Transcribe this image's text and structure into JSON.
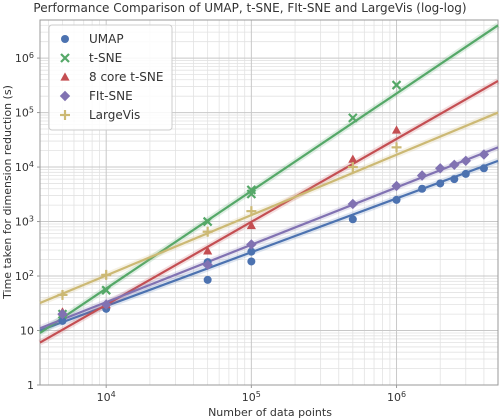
{
  "chart_data": {
    "type": "scatter",
    "title": "Performance Comparison of UMAP, t-SNE, FIt-SNE and LargeVis (log-log)",
    "xlabel": "Number of data points",
    "ylabel": "Time taken for dimension reduction (s)",
    "x_scale": "log",
    "y_scale": "log",
    "xlim": [
      3500,
      5000000
    ],
    "ylim": [
      1,
      5000000
    ],
    "x_ticks": [
      10000,
      100000,
      1000000
    ],
    "x_tick_labels": [
      "10^4",
      "10^5",
      "10^6"
    ],
    "y_ticks": [
      1,
      10,
      100,
      1000,
      10000,
      100000,
      1000000
    ],
    "y_tick_labels": [
      "1",
      "10",
      "10^2",
      "10^3",
      "10^4",
      "10^5",
      "10^6"
    ],
    "grid": true,
    "legend_position": "top-left",
    "series": [
      {
        "name": "UMAP",
        "color": "#4c72b0",
        "marker": "circle",
        "points": [
          {
            "x": 5000,
            "y": 15
          },
          {
            "x": 10000,
            "y": 25
          },
          {
            "x": 50000,
            "y": 85
          },
          {
            "x": 50000,
            "y": 180
          },
          {
            "x": 100000,
            "y": 185
          },
          {
            "x": 100000,
            "y": 280
          },
          {
            "x": 500000,
            "y": 1100
          },
          {
            "x": 1000000,
            "y": 2500
          },
          {
            "x": 1500000,
            "y": 4000
          },
          {
            "x": 2000000,
            "y": 5000
          },
          {
            "x": 2500000,
            "y": 6000
          },
          {
            "x": 3000000,
            "y": 7500
          },
          {
            "x": 4000000,
            "y": 9500
          }
        ],
        "fit": [
          {
            "x": 3500,
            "y": 10
          },
          {
            "x": 5000000,
            "y": 13000
          }
        ]
      },
      {
        "name": "t-SNE",
        "color": "#55a868",
        "marker": "x",
        "points": [
          {
            "x": 5000,
            "y": 20
          },
          {
            "x": 10000,
            "y": 55
          },
          {
            "x": 50000,
            "y": 1000
          },
          {
            "x": 100000,
            "y": 3200
          },
          {
            "x": 100000,
            "y": 3800
          },
          {
            "x": 500000,
            "y": 80000
          },
          {
            "x": 1000000,
            "y": 320000
          }
        ],
        "fit": [
          {
            "x": 3500,
            "y": 9
          },
          {
            "x": 5000000,
            "y": 4000000
          }
        ]
      },
      {
        "name": "8 core t-SNE",
        "color": "#c44e52",
        "marker": "triangle",
        "points": [
          {
            "x": 5000,
            "y": 22
          },
          {
            "x": 10000,
            "y": 30
          },
          {
            "x": 50000,
            "y": 290
          },
          {
            "x": 100000,
            "y": 850
          },
          {
            "x": 500000,
            "y": 14000
          },
          {
            "x": 1000000,
            "y": 48000
          }
        ],
        "fit": [
          {
            "x": 3500,
            "y": 6
          },
          {
            "x": 5000000,
            "y": 380000
          }
        ]
      },
      {
        "name": "FIt-SNE",
        "color": "#8172b2",
        "marker": "diamond",
        "points": [
          {
            "x": 5000,
            "y": 20
          },
          {
            "x": 10000,
            "y": 30
          },
          {
            "x": 50000,
            "y": 160
          },
          {
            "x": 100000,
            "y": 380
          },
          {
            "x": 500000,
            "y": 2100
          },
          {
            "x": 1000000,
            "y": 4500
          },
          {
            "x": 1500000,
            "y": 7000
          },
          {
            "x": 2000000,
            "y": 9500
          },
          {
            "x": 2500000,
            "y": 11000
          },
          {
            "x": 3000000,
            "y": 13000
          },
          {
            "x": 4000000,
            "y": 17000
          }
        ],
        "fit": [
          {
            "x": 3500,
            "y": 11
          },
          {
            "x": 5000000,
            "y": 23000
          }
        ]
      },
      {
        "name": "LargeVis",
        "color": "#ccb974",
        "marker": "plus",
        "points": [
          {
            "x": 5000,
            "y": 45
          },
          {
            "x": 10000,
            "y": 105
          },
          {
            "x": 50000,
            "y": 650
          },
          {
            "x": 100000,
            "y": 1550
          },
          {
            "x": 500000,
            "y": 10000
          },
          {
            "x": 1000000,
            "y": 23000
          }
        ],
        "fit": [
          {
            "x": 3500,
            "y": 32
          },
          {
            "x": 5000000,
            "y": 100000
          }
        ]
      }
    ]
  }
}
